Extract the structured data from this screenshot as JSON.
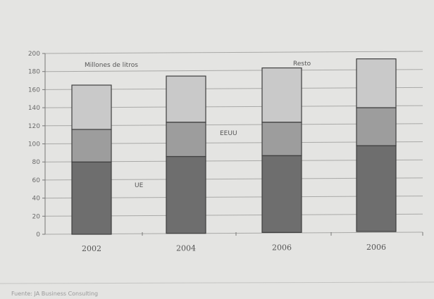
{
  "chart_data": {
    "type": "bar",
    "stacked": true,
    "categories": [
      "2002",
      "2004",
      "2006",
      "2006"
    ],
    "series": [
      {
        "name": "UE",
        "values": [
          80,
          85,
          85,
          95
        ]
      },
      {
        "name": "EEUU",
        "values": [
          36,
          38,
          37,
          42
        ]
      },
      {
        "name": "Resto",
        "values": [
          49,
          51,
          60,
          54
        ]
      }
    ],
    "ylabel": "Millones de litros",
    "ylim": [
      0,
      200
    ],
    "yticks": [
      0,
      20,
      40,
      60,
      80,
      100,
      120,
      140,
      160,
      180,
      200
    ],
    "grid": true,
    "colors": {
      "UE": "#6e6e6e",
      "EEUU": "#9d9d9d",
      "Resto": "#c9c9c9"
    }
  },
  "labels": {
    "ylabel": "Millones de litros",
    "resto": "Resto",
    "eeuu": "EEUU",
    "ue": "UE"
  },
  "source": "Fuente: JA Business Consulting"
}
